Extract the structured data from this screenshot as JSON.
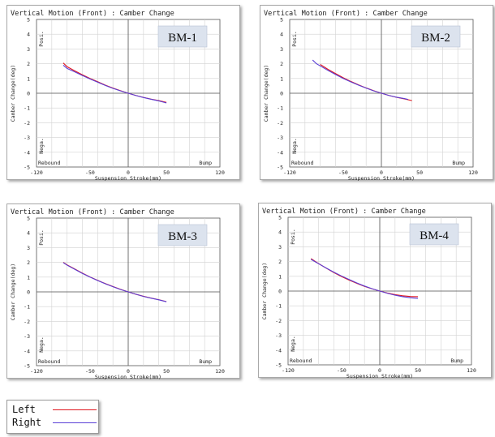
{
  "colors": {
    "left": "#e0161e",
    "right": "#5a3fd6",
    "grid": "#d2d2d2",
    "tag_bg": "#dce3ee"
  },
  "legend": [
    {
      "label": "Left",
      "color": "#e0161e"
    },
    {
      "label": "Right",
      "color": "#5a3fd6"
    }
  ],
  "chart_data": [
    {
      "type": "line",
      "tag": "BM-1",
      "title": "Vertical Motion (Front) : Camber Change",
      "xlabel": "Suspension Stroke(mm)",
      "ylabel": "Camber Change(deg)",
      "xlim": [
        -120,
        120
      ],
      "ylim": [
        -5,
        5
      ],
      "xticks": [
        "-120",
        "-50",
        "0",
        "50",
        "120"
      ],
      "yticks": [
        "-5",
        "-4",
        "-3",
        "-2",
        "-1",
        "0",
        "1",
        "2",
        "3",
        "4",
        "5"
      ],
      "corner_labels": {
        "posi": "Posi.",
        "nega": "Nega.",
        "rebound": "Rebound",
        "bump": "Bump"
      },
      "series": [
        {
          "name": "Left",
          "x": [
            -85,
            -80,
            -70,
            -60,
            -50,
            -40,
            -30,
            -20,
            -10,
            0,
            10,
            20,
            30,
            40,
            50
          ],
          "y": [
            2.05,
            1.8,
            1.52,
            1.25,
            1.0,
            0.78,
            0.55,
            0.35,
            0.17,
            0.0,
            -0.15,
            -0.28,
            -0.4,
            -0.5,
            -0.62
          ]
        },
        {
          "name": "Right",
          "x": [
            -85,
            -80,
            -70,
            -60,
            -50,
            -40,
            -30,
            -20,
            -10,
            0,
            10,
            20,
            30,
            40,
            50
          ],
          "y": [
            1.9,
            1.68,
            1.45,
            1.2,
            0.97,
            0.75,
            0.53,
            0.33,
            0.16,
            0.0,
            -0.15,
            -0.29,
            -0.41,
            -0.52,
            -0.66
          ]
        }
      ]
    },
    {
      "type": "line",
      "tag": "BM-2",
      "title": "Vertical Motion (Front) : Camber Change",
      "xlabel": "Suspension Stroke(mm)",
      "ylabel": "Camber Change(deg)",
      "xlim": [
        -120,
        120
      ],
      "ylim": [
        -5,
        5
      ],
      "xticks": [
        "-120",
        "-50",
        "0",
        "50",
        "120"
      ],
      "yticks": [
        "-5",
        "-4",
        "-3",
        "-2",
        "-1",
        "0",
        "1",
        "2",
        "3",
        "4",
        "5"
      ],
      "corner_labels": {
        "posi": "Posi.",
        "nega": "Nega.",
        "rebound": "Rebound",
        "bump": "Bump"
      },
      "series": [
        {
          "name": "Left",
          "x": [
            -80,
            -70,
            -60,
            -50,
            -40,
            -30,
            -20,
            -10,
            0,
            10,
            20,
            30,
            40
          ],
          "y": [
            1.95,
            1.62,
            1.33,
            1.05,
            0.8,
            0.57,
            0.36,
            0.17,
            0.0,
            -0.15,
            -0.28,
            -0.38,
            -0.5
          ]
        },
        {
          "name": "Right",
          "x": [
            -90,
            -85,
            -80,
            -70,
            -60,
            -50,
            -40,
            -30,
            -20,
            -10,
            0,
            10,
            20,
            30,
            35
          ],
          "y": [
            2.25,
            2.0,
            1.85,
            1.55,
            1.27,
            1.0,
            0.77,
            0.55,
            0.35,
            0.16,
            0.0,
            -0.15,
            -0.27,
            -0.36,
            -0.42
          ]
        }
      ]
    },
    {
      "type": "line",
      "tag": "BM-3",
      "title": "Vertical Motion (Front) : Camber Change",
      "xlabel": "Suspension Stroke(mm)",
      "ylabel": "Camber Change(deg)",
      "xlim": [
        -120,
        120
      ],
      "ylim": [
        -5,
        5
      ],
      "xticks": [
        "-120",
        "-50",
        "0",
        "50",
        "120"
      ],
      "yticks": [
        "-5",
        "-4",
        "-3",
        "-2",
        "-1",
        "0",
        "1",
        "2",
        "3",
        "4",
        "5"
      ],
      "corner_labels": {
        "posi": "Posi.",
        "nega": "Nega.",
        "rebound": "Rebound",
        "bump": "Bump"
      },
      "series": [
        {
          "name": "Left",
          "x": [
            -85,
            -80,
            -70,
            -60,
            -50,
            -40,
            -30,
            -20,
            -10,
            0,
            10,
            20,
            30,
            40,
            50
          ],
          "y": [
            2.0,
            1.83,
            1.55,
            1.27,
            1.01,
            0.78,
            0.56,
            0.36,
            0.17,
            0.0,
            -0.16,
            -0.3,
            -0.42,
            -0.53,
            -0.66
          ]
        },
        {
          "name": "Right",
          "x": [
            -85,
            -80,
            -70,
            -60,
            -50,
            -40,
            -30,
            -20,
            -10,
            0,
            10,
            20,
            30,
            40,
            50
          ],
          "y": [
            1.98,
            1.81,
            1.53,
            1.25,
            1.0,
            0.77,
            0.55,
            0.35,
            0.16,
            0.0,
            -0.16,
            -0.31,
            -0.43,
            -0.54,
            -0.67
          ]
        }
      ]
    },
    {
      "type": "line",
      "tag": "BM-4",
      "title": "Vertical Motion (Front) : Camber Change",
      "xlabel": "Suspension Stroke(mm)",
      "ylabel": "Camber Change(deg)",
      "xlim": [
        -120,
        120
      ],
      "ylim": [
        -5,
        5
      ],
      "xticks": [
        "-120",
        "-50",
        "0",
        "50",
        "120"
      ],
      "yticks": [
        "-5",
        "-4",
        "-3",
        "-2",
        "-1",
        "0",
        "1",
        "2",
        "3",
        "4",
        "5"
      ],
      "corner_labels": {
        "posi": "Posi.",
        "nega": "Nega.",
        "rebound": "Rebound",
        "bump": "Bump"
      },
      "series": [
        {
          "name": "Left",
          "x": [
            -90,
            -80,
            -70,
            -60,
            -50,
            -40,
            -30,
            -20,
            -10,
            0,
            10,
            20,
            30,
            40,
            50
          ],
          "y": [
            2.2,
            1.86,
            1.55,
            1.25,
            0.98,
            0.74,
            0.52,
            0.32,
            0.15,
            0.0,
            -0.13,
            -0.24,
            -0.32,
            -0.37,
            -0.38
          ]
        },
        {
          "name": "Right",
          "x": [
            -90,
            -85,
            -80,
            -70,
            -60,
            -50,
            -40,
            -30,
            -20,
            -10,
            0,
            10,
            20,
            30,
            40,
            50
          ],
          "y": [
            2.15,
            2.0,
            1.85,
            1.56,
            1.28,
            1.02,
            0.78,
            0.55,
            0.34,
            0.16,
            0.0,
            -0.15,
            -0.28,
            -0.38,
            -0.45,
            -0.5
          ]
        }
      ]
    }
  ]
}
